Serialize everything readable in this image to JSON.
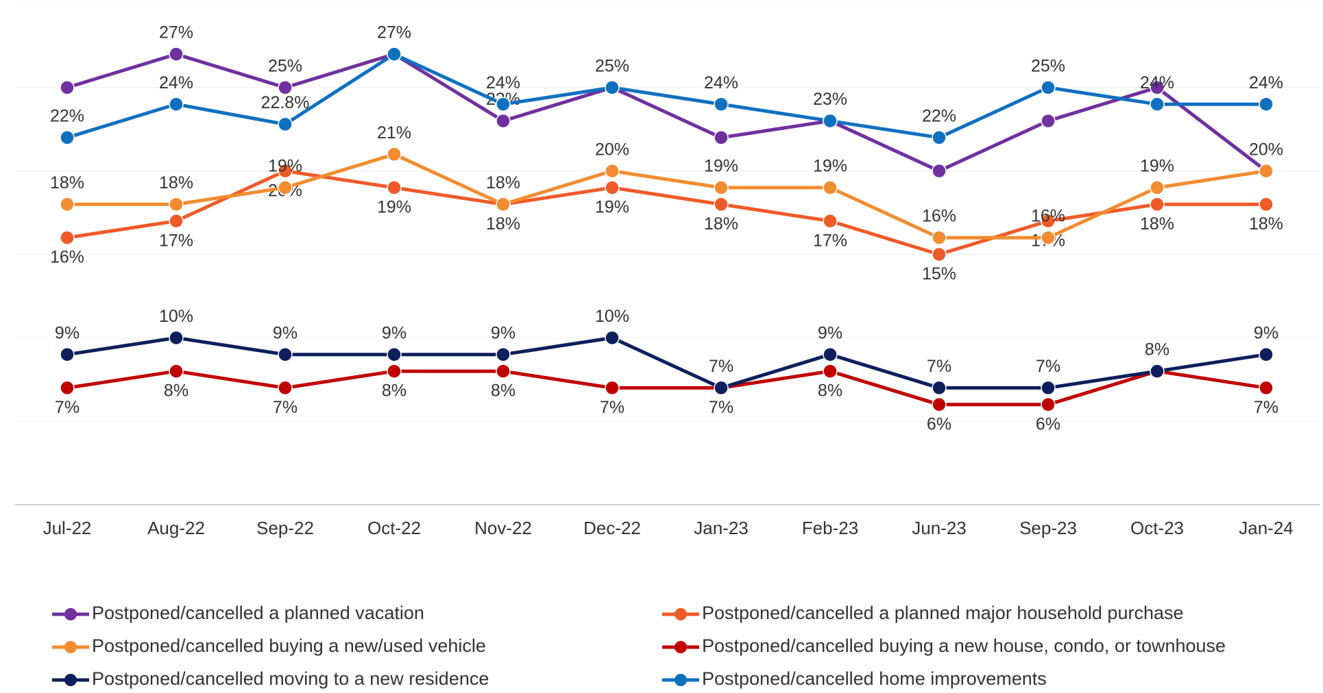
{
  "chart_data": {
    "type": "line",
    "categories": [
      "Jul-22",
      "Aug-22",
      "Sep-22",
      "Oct-22",
      "Nov-22",
      "Dec-22",
      "Jan-23",
      "Feb-23",
      "Jun-23",
      "Sep-23",
      "Oct-23",
      "Jan-24"
    ],
    "ylim": [
      0,
      30
    ],
    "yticks": [
      0,
      5,
      10,
      15,
      20,
      25,
      30
    ],
    "grid": true,
    "legend": "bottom",
    "series": [
      {
        "name": "Postponed/cancelled a planned vacation",
        "color": "#7030a0",
        "values": [
          25,
          27,
          25,
          27,
          23,
          25,
          22,
          23,
          20,
          23,
          25,
          20
        ],
        "value_labels": [
          null,
          "27%",
          "25%",
          null,
          "23%",
          "25%",
          null,
          null,
          null,
          null,
          null,
          "20%"
        ]
      },
      {
        "name": "Postponed/cancelled a planned major household purchase",
        "color": "#f05a28",
        "values": [
          16,
          17,
          20,
          19,
          18,
          19,
          18,
          17,
          15,
          17,
          18,
          18
        ],
        "value_labels": [
          "16%",
          "17%",
          "20%",
          "19%",
          "18%",
          "19%",
          "18%",
          "17%",
          "15%",
          "17%",
          "18%",
          "18%"
        ]
      },
      {
        "name": "Postponed/cancelled buying a new/used vehicle",
        "color": "#f28c30",
        "values": [
          18,
          18,
          19,
          21,
          18,
          20,
          19,
          19,
          16,
          16,
          19,
          20
        ],
        "value_labels": [
          "18%",
          "18%",
          "19%",
          "21%",
          "18%",
          "20%",
          "19%",
          "19%",
          "16%",
          "16%",
          "19%",
          null
        ]
      },
      {
        "name": "Postponed/cancelled buying a new house, condo, or townhouse",
        "color": "#c00000",
        "values": [
          7,
          8,
          7,
          8,
          8,
          7,
          7,
          8,
          6,
          6,
          8,
          7
        ],
        "value_labels": [
          "7%",
          "8%",
          "7%",
          "8%",
          "8%",
          "7%",
          "7%",
          "8%",
          "6%",
          "6%",
          null,
          "7%"
        ]
      },
      {
        "name": "Postponed/cancelled moving to a new residence",
        "color": "#0d1f5c",
        "values": [
          9,
          10,
          9,
          9,
          9,
          10,
          7,
          9,
          7,
          7,
          8,
          9
        ],
        "value_labels": [
          "9%",
          "10%",
          "9%",
          "9%",
          "9%",
          "10%",
          "7%",
          "9%",
          "7%",
          "7%",
          "8%",
          "9%"
        ]
      },
      {
        "name": "Postponed/cancelled home improvements",
        "color": "#1070c0",
        "values": [
          22,
          24,
          22.8,
          27,
          24,
          25,
          24,
          23,
          22,
          25,
          24,
          24
        ],
        "value_labels": [
          "22%",
          "24%",
          "22.8%",
          "27%",
          "24%",
          null,
          "24%",
          "23%",
          "22%",
          "25%",
          "24%",
          "24%"
        ]
      }
    ]
  }
}
